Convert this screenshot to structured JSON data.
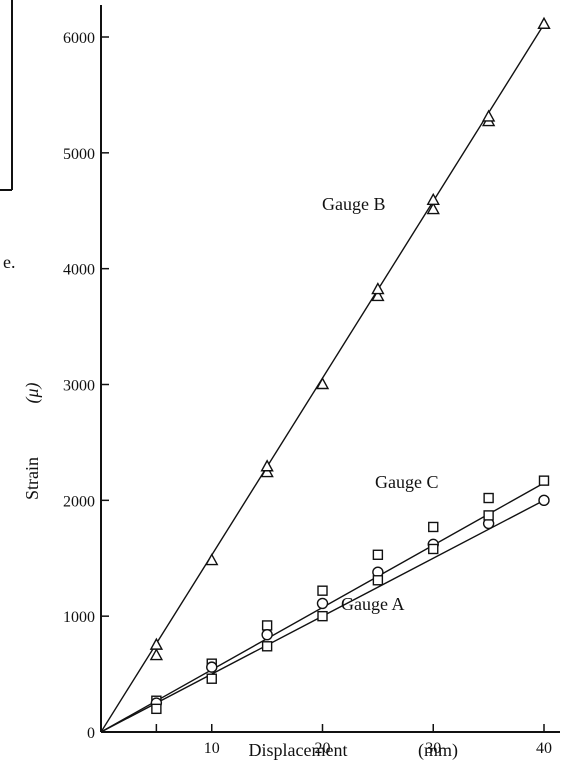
{
  "chart_data": {
    "type": "scatter",
    "title": "",
    "xlabel": "Displacement",
    "xlabel_unit": "(mm)",
    "ylabel": "Strain",
    "ylabel_unit": "(μ)",
    "xlim": [
      0,
      40
    ],
    "ylim": [
      0,
      6000
    ],
    "x_ticks": [
      10,
      20,
      30,
      40
    ],
    "y_ticks": [
      0,
      1000,
      2000,
      3000,
      4000,
      5000,
      6000
    ],
    "grid": false,
    "series": [
      {
        "name": "Gauge B",
        "marker": "triangle",
        "points": [
          [
            5,
            660
          ],
          [
            5,
            750
          ],
          [
            10,
            1480
          ],
          [
            15,
            2240
          ],
          [
            15,
            2290
          ],
          [
            20,
            3000
          ],
          [
            25,
            3760
          ],
          [
            25,
            3820
          ],
          [
            30,
            4510
          ],
          [
            30,
            4590
          ],
          [
            35,
            5270
          ],
          [
            35,
            5310
          ],
          [
            40,
            6110
          ]
        ],
        "fit_line": [
          [
            0,
            0
          ],
          [
            40,
            6110
          ]
        ]
      },
      {
        "name": "Gauge C",
        "marker": "square",
        "points": [
          [
            5,
            270
          ],
          [
            10,
            590
          ],
          [
            15,
            920
          ],
          [
            20,
            1220
          ],
          [
            25,
            1530
          ],
          [
            30,
            1770
          ],
          [
            35,
            2020
          ],
          [
            40,
            2170
          ]
        ],
        "fit_line": [
          [
            0,
            0
          ],
          [
            40,
            2150
          ]
        ]
      },
      {
        "name": "Gauge A",
        "marker": "circle",
        "points": [
          [
            5,
            250
          ],
          [
            10,
            560
          ],
          [
            15,
            840
          ],
          [
            20,
            1110
          ],
          [
            25,
            1380
          ],
          [
            30,
            1620
          ],
          [
            35,
            1800
          ],
          [
            40,
            2000
          ]
        ],
        "fit_line": [
          [
            0,
            0
          ],
          [
            40,
            2000
          ]
        ]
      },
      {
        "name": "",
        "marker": "square",
        "points": [
          [
            5,
            200
          ],
          [
            10,
            460
          ],
          [
            15,
            740
          ],
          [
            20,
            1000
          ],
          [
            25,
            1310
          ],
          [
            30,
            1580
          ],
          [
            35,
            1870
          ]
        ]
      }
    ],
    "stray_text": "e."
  }
}
